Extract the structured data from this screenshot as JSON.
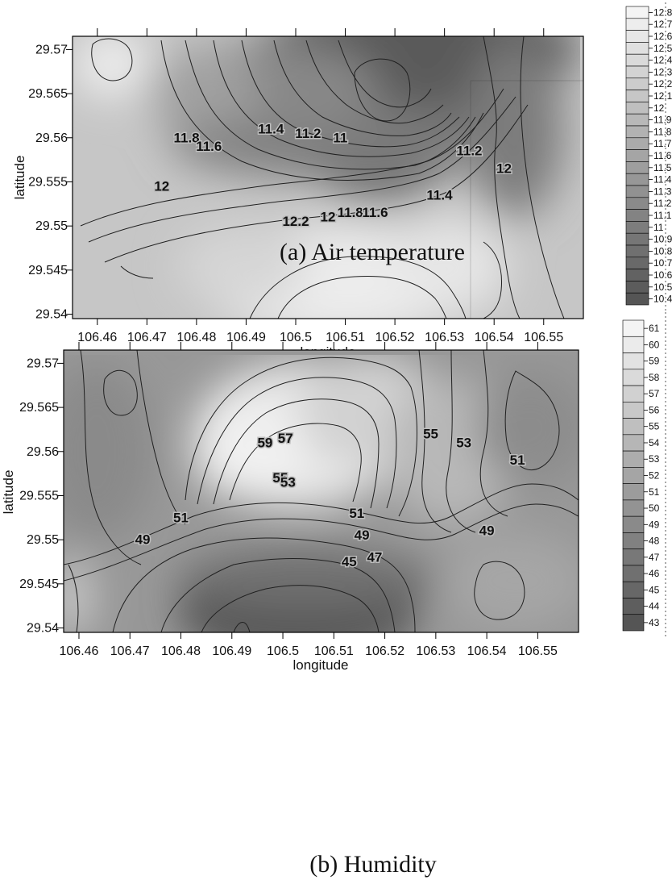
{
  "chart_data": [
    {
      "type": "contour",
      "caption": "(a) Air temperature",
      "xlabel": "longitude",
      "ylabel": "latitude",
      "xlim": [
        106.455,
        106.558
      ],
      "ylim": [
        29.5395,
        29.5715
      ],
      "x_ticks": [
        "106.46",
        "106.47",
        "106.48",
        "106.49",
        "106.5",
        "106.51",
        "106.52",
        "106.53",
        "106.54",
        "106.55"
      ],
      "y_ticks": [
        "29.57",
        "29.565",
        "29.56",
        "29.555",
        "29.55",
        "29.545",
        "29.54"
      ],
      "color_levels": [
        "12.8",
        "12.7",
        "12.6",
        "12.5",
        "12.4",
        "12.3",
        "12.2",
        "12.1",
        "12",
        "11.9",
        "11.8",
        "11.7",
        "11.6",
        "11.5",
        "11.4",
        "11.3",
        "11.2",
        "11.1",
        "11",
        "10.9",
        "10.8",
        "10.7",
        "10.6",
        "10.5",
        "10.4"
      ],
      "contour_labels": [
        {
          "text": "11.8",
          "lon": 106.478,
          "lat": 29.5595
        },
        {
          "text": "11.6",
          "lon": 106.4825,
          "lat": 29.5585
        },
        {
          "text": "11.4",
          "lon": 106.495,
          "lat": 29.5605
        },
        {
          "text": "11.2",
          "lon": 106.5025,
          "lat": 29.56
        },
        {
          "text": "11",
          "lon": 106.509,
          "lat": 29.5595
        },
        {
          "text": "12",
          "lon": 106.473,
          "lat": 29.554
        },
        {
          "text": "12.2",
          "lon": 106.5,
          "lat": 29.55
        },
        {
          "text": "12",
          "lon": 106.5065,
          "lat": 29.5505
        },
        {
          "text": "11.8",
          "lon": 106.511,
          "lat": 29.551
        },
        {
          "text": "11.6",
          "lon": 106.516,
          "lat": 29.551
        },
        {
          "text": "11.4",
          "lon": 106.529,
          "lat": 29.553
        },
        {
          "text": "11.2",
          "lon": 106.535,
          "lat": 29.558
        },
        {
          "text": "12",
          "lon": 106.542,
          "lat": 29.556
        }
      ]
    },
    {
      "type": "contour",
      "caption": "(b) Humidity",
      "xlabel": "longitude",
      "ylabel": "latitude",
      "xlim": [
        106.457,
        106.558
      ],
      "ylim": [
        29.5395,
        29.5715
      ],
      "x_ticks": [
        "106.46",
        "106.47",
        "106.48",
        "106.49",
        "106.5",
        "106.51",
        "106.52",
        "106.53",
        "106.54",
        "106.55"
      ],
      "y_ticks": [
        "29.57",
        "29.565",
        "29.56",
        "29.555",
        "29.55",
        "29.545",
        "29.54"
      ],
      "color_levels": [
        "61",
        "60",
        "59",
        "58",
        "57",
        "56",
        "55",
        "54",
        "53",
        "52",
        "51",
        "50",
        "49",
        "48",
        "47",
        "46",
        "45",
        "44",
        "43"
      ],
      "contour_labels": [
        {
          "text": "59",
          "lon": 106.4965,
          "lat": 29.5605
        },
        {
          "text": "57",
          "lon": 106.5005,
          "lat": 29.561
        },
        {
          "text": "55",
          "lon": 106.4995,
          "lat": 29.5565
        },
        {
          "text": "53",
          "lon": 106.501,
          "lat": 29.556
        },
        {
          "text": "51",
          "lon": 106.48,
          "lat": 29.552
        },
        {
          "text": "49",
          "lon": 106.4725,
          "lat": 29.5495
        },
        {
          "text": "51",
          "lon": 106.5145,
          "lat": 29.5525
        },
        {
          "text": "49",
          "lon": 106.5155,
          "lat": 29.55
        },
        {
          "text": "47",
          "lon": 106.518,
          "lat": 29.5475
        },
        {
          "text": "45",
          "lon": 106.513,
          "lat": 29.547
        },
        {
          "text": "55",
          "lon": 106.529,
          "lat": 29.5615
        },
        {
          "text": "53",
          "lon": 106.5355,
          "lat": 29.5605
        },
        {
          "text": "51",
          "lon": 106.546,
          "lat": 29.5585
        },
        {
          "text": "49",
          "lon": 106.54,
          "lat": 29.5505
        }
      ]
    }
  ],
  "colors": {
    "darkest": "#555555",
    "lightest": "#f4f4f4",
    "contour_line": "#202020",
    "frame": "#000000"
  }
}
